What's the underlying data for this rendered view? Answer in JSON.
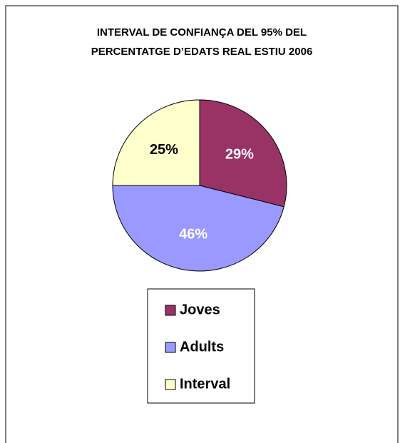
{
  "chart_data": {
    "type": "pie",
    "title": [
      "INTERVAL DE CONFIANÇA DEL 95%  DEL",
      "PERCENTATGE D’EDATS REAL ESTIU 2006"
    ],
    "categories": [
      "Joves",
      "Adults",
      "Interval"
    ],
    "values": [
      29,
      46,
      25
    ],
    "value_labels": [
      "29%",
      "46%",
      "25%"
    ],
    "colors": [
      "#993366",
      "#9999ff",
      "#ffffcc"
    ],
    "legend": "bottom"
  }
}
